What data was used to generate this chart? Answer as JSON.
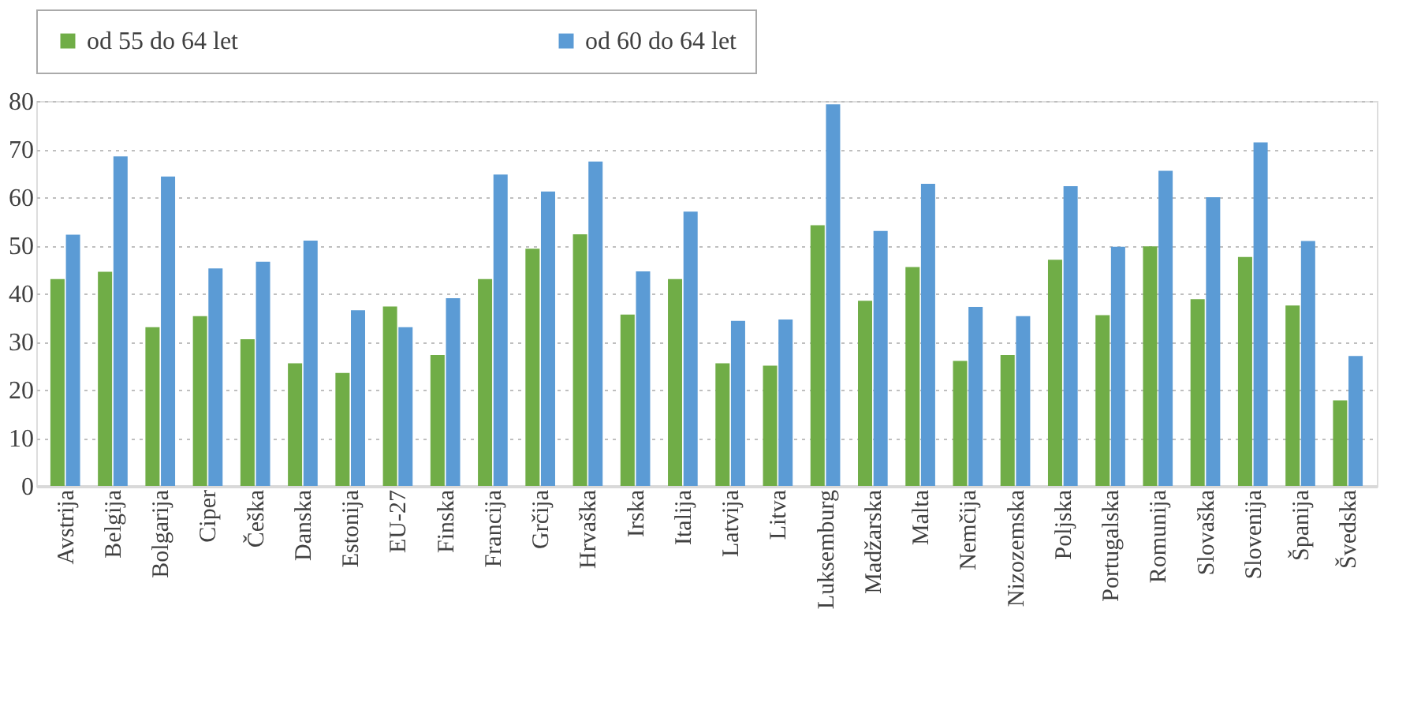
{
  "chart_data": {
    "type": "bar",
    "categories": [
      "Avstrija",
      "Belgija",
      "Bolgarija",
      "Ciper",
      "Češka",
      "Danska",
      "Estonija",
      "EU-27",
      "Finska",
      "Francija",
      "Grčija",
      "Hrvaška",
      "Irska",
      "Italija",
      "Latvija",
      "Litva",
      "Luksemburg",
      "Madžarska",
      "Malta",
      "Nemčija",
      "Nizozemska",
      "Poljska",
      "Portugalska",
      "Romunija",
      "Slovaška",
      "Slovenija",
      "Španija",
      "Švedska"
    ],
    "series": [
      {
        "name": "od 55 do 64 let",
        "color": "#70ad47",
        "values": [
          43,
          44.5,
          33,
          35.3,
          30.5,
          25.5,
          23.5,
          37.3,
          27.2,
          43,
          49.3,
          52.3,
          35.6,
          43,
          25.5,
          25,
          54.2,
          38.5,
          45.5,
          26,
          27.2,
          47,
          35.5,
          49.8,
          38.8,
          47.6,
          37.5,
          17.8
        ]
      },
      {
        "name": "od 60 do 64 let",
        "color": "#5b9bd5",
        "values": [
          52.2,
          68.5,
          64.3,
          45.2,
          46.6,
          51,
          36.5,
          33,
          39,
          64.7,
          61.2,
          67.4,
          44.6,
          57,
          34.3,
          34.6,
          79.3,
          53,
          62.8,
          37.2,
          35.3,
          62.3,
          49.7,
          65.5,
          60,
          71.4,
          50.9,
          27
        ]
      }
    ],
    "ylim": [
      0,
      80
    ],
    "yticks": [
      0,
      10,
      20,
      30,
      40,
      50,
      60,
      70,
      80
    ],
    "grid": "y",
    "legend": "top"
  }
}
